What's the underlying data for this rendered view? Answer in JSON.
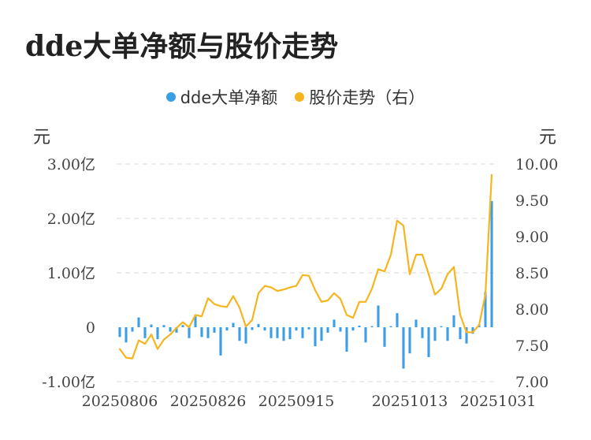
{
  "title": "dde大单净额与股价走势",
  "legend": {
    "bars_label": "dde大单净额",
    "line_label": "股价走势（右）"
  },
  "units": {
    "left": "元",
    "right": "元"
  },
  "colors": {
    "bars": "#3a9ee4",
    "line": "#f5b51f",
    "grid": "#e6e6e6"
  },
  "chart_data": {
    "type": "bar",
    "title": "dde大单净额与股价走势",
    "x_tick_labels": [
      "20250806",
      "20250826",
      "20250915",
      "20251013",
      "20251031"
    ],
    "x_tick_positions": [
      0,
      14,
      28,
      46,
      60
    ],
    "left_axis": {
      "unit": "元",
      "ylim": [
        -1.0,
        3.0
      ],
      "ticks": [
        -1.0,
        0,
        1.0,
        2.0,
        3.0
      ],
      "tick_labels": [
        "-1.00亿",
        "0",
        "1.00亿",
        "2.00亿",
        "3.00亿"
      ]
    },
    "right_axis": {
      "unit": "元",
      "ylim": [
        7.0,
        10.0
      ],
      "ticks": [
        7.0,
        7.5,
        8.0,
        8.5,
        9.0,
        9.5,
        10.0
      ],
      "tick_labels": [
        "7.00",
        "7.50",
        "8.00",
        "8.50",
        "9.00",
        "9.50",
        "10.00"
      ]
    },
    "grid": true,
    "legend_position": "top-center",
    "series": [
      {
        "name": "dde大单净额",
        "type": "bar",
        "axis": "left",
        "values": [
          -0.18,
          -0.28,
          -0.08,
          0.18,
          -0.2,
          0.05,
          -0.22,
          0.04,
          -0.08,
          -0.1,
          0.04,
          -0.2,
          0.2,
          -0.18,
          -0.2,
          -0.1,
          -0.52,
          -0.06,
          0.08,
          -0.25,
          -0.3,
          -0.05,
          0.06,
          -0.06,
          -0.2,
          -0.2,
          -0.25,
          -0.22,
          -0.06,
          -0.2,
          -0.04,
          -0.35,
          -0.25,
          -0.1,
          0.14,
          -0.08,
          -0.45,
          -0.06,
          0.03,
          -0.28,
          0.02,
          0.4,
          -0.36,
          0.02,
          0.26,
          -0.76,
          -0.48,
          0.14,
          -0.2,
          -0.55,
          -0.25,
          0.02,
          -0.25,
          0.22,
          -0.22,
          -0.3,
          -0.12,
          0.05,
          0.65,
          2.32
        ]
      },
      {
        "name": "股价走势（右）",
        "type": "line",
        "axis": "right",
        "values": [
          7.45,
          7.33,
          7.32,
          7.57,
          7.52,
          7.65,
          7.45,
          7.58,
          7.65,
          7.74,
          7.82,
          7.75,
          7.92,
          7.9,
          8.15,
          8.07,
          8.04,
          8.03,
          8.18,
          8.02,
          7.76,
          7.85,
          8.22,
          8.32,
          8.3,
          8.25,
          8.27,
          8.3,
          8.32,
          8.47,
          8.46,
          8.26,
          8.1,
          8.12,
          8.22,
          8.14,
          7.92,
          7.88,
          8.1,
          8.1,
          8.28,
          8.55,
          8.52,
          8.75,
          9.22,
          9.15,
          8.48,
          8.75,
          8.75,
          8.48,
          8.2,
          8.28,
          8.48,
          8.58,
          7.92,
          7.68,
          7.68,
          7.78,
          8.2,
          9.85
        ]
      }
    ]
  }
}
